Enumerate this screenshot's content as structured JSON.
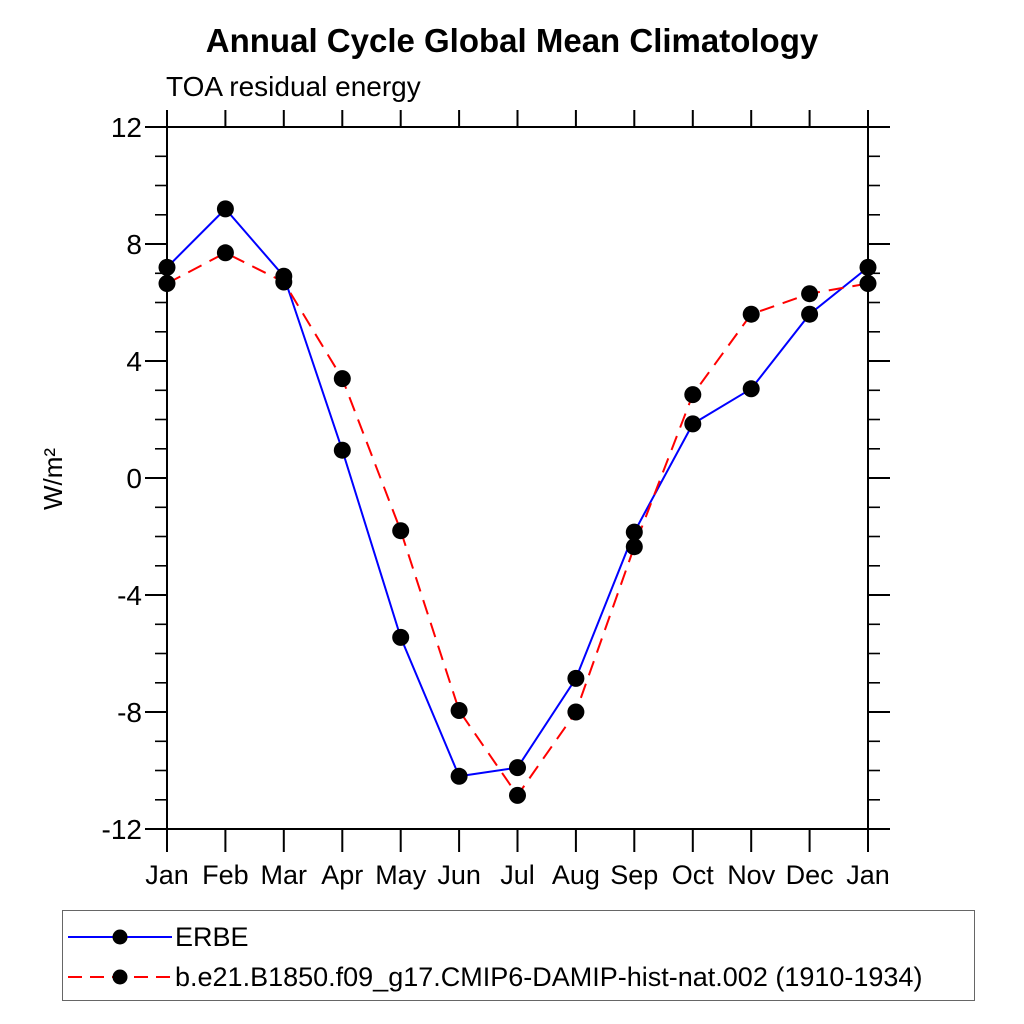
{
  "chart_data": {
    "type": "line",
    "title": "Annual Cycle Global Mean Climatology",
    "subtitle": "TOA residual energy",
    "ylabel": "W/m²",
    "xlabel": "",
    "categories": [
      "Jan",
      "Feb",
      "Mar",
      "Apr",
      "May",
      "Jun",
      "Jul",
      "Aug",
      "Sep",
      "Oct",
      "Nov",
      "Dec",
      "Jan"
    ],
    "ylim": [
      -12,
      12
    ],
    "yticks": [
      -12,
      -8,
      -4,
      0,
      4,
      8,
      12
    ],
    "ytick_minor_step": 1,
    "grid": "off",
    "legend_position": "bottom",
    "axis_color": "#000000",
    "series": [
      {
        "name": "ERBE",
        "color": "#0000ff",
        "line_style": "solid",
        "marker": "filled-circle",
        "marker_color": "#000000",
        "values": [
          7.2,
          9.2,
          6.9,
          0.95,
          -5.45,
          -10.2,
          -9.9,
          -6.85,
          -1.85,
          1.85,
          3.05,
          5.6,
          7.2
        ]
      },
      {
        "name": "b.e21.B1850.f09_g17.CMIP6-DAMIP-hist-nat.002 (1910-1934)",
        "color": "#ff0000",
        "line_style": "dashed",
        "marker": "filled-circle",
        "marker_color": "#000000",
        "values": [
          6.65,
          7.7,
          6.7,
          3.4,
          -1.8,
          -7.95,
          -10.85,
          -8.0,
          -2.35,
          2.85,
          5.6,
          6.3,
          6.65
        ]
      }
    ]
  }
}
